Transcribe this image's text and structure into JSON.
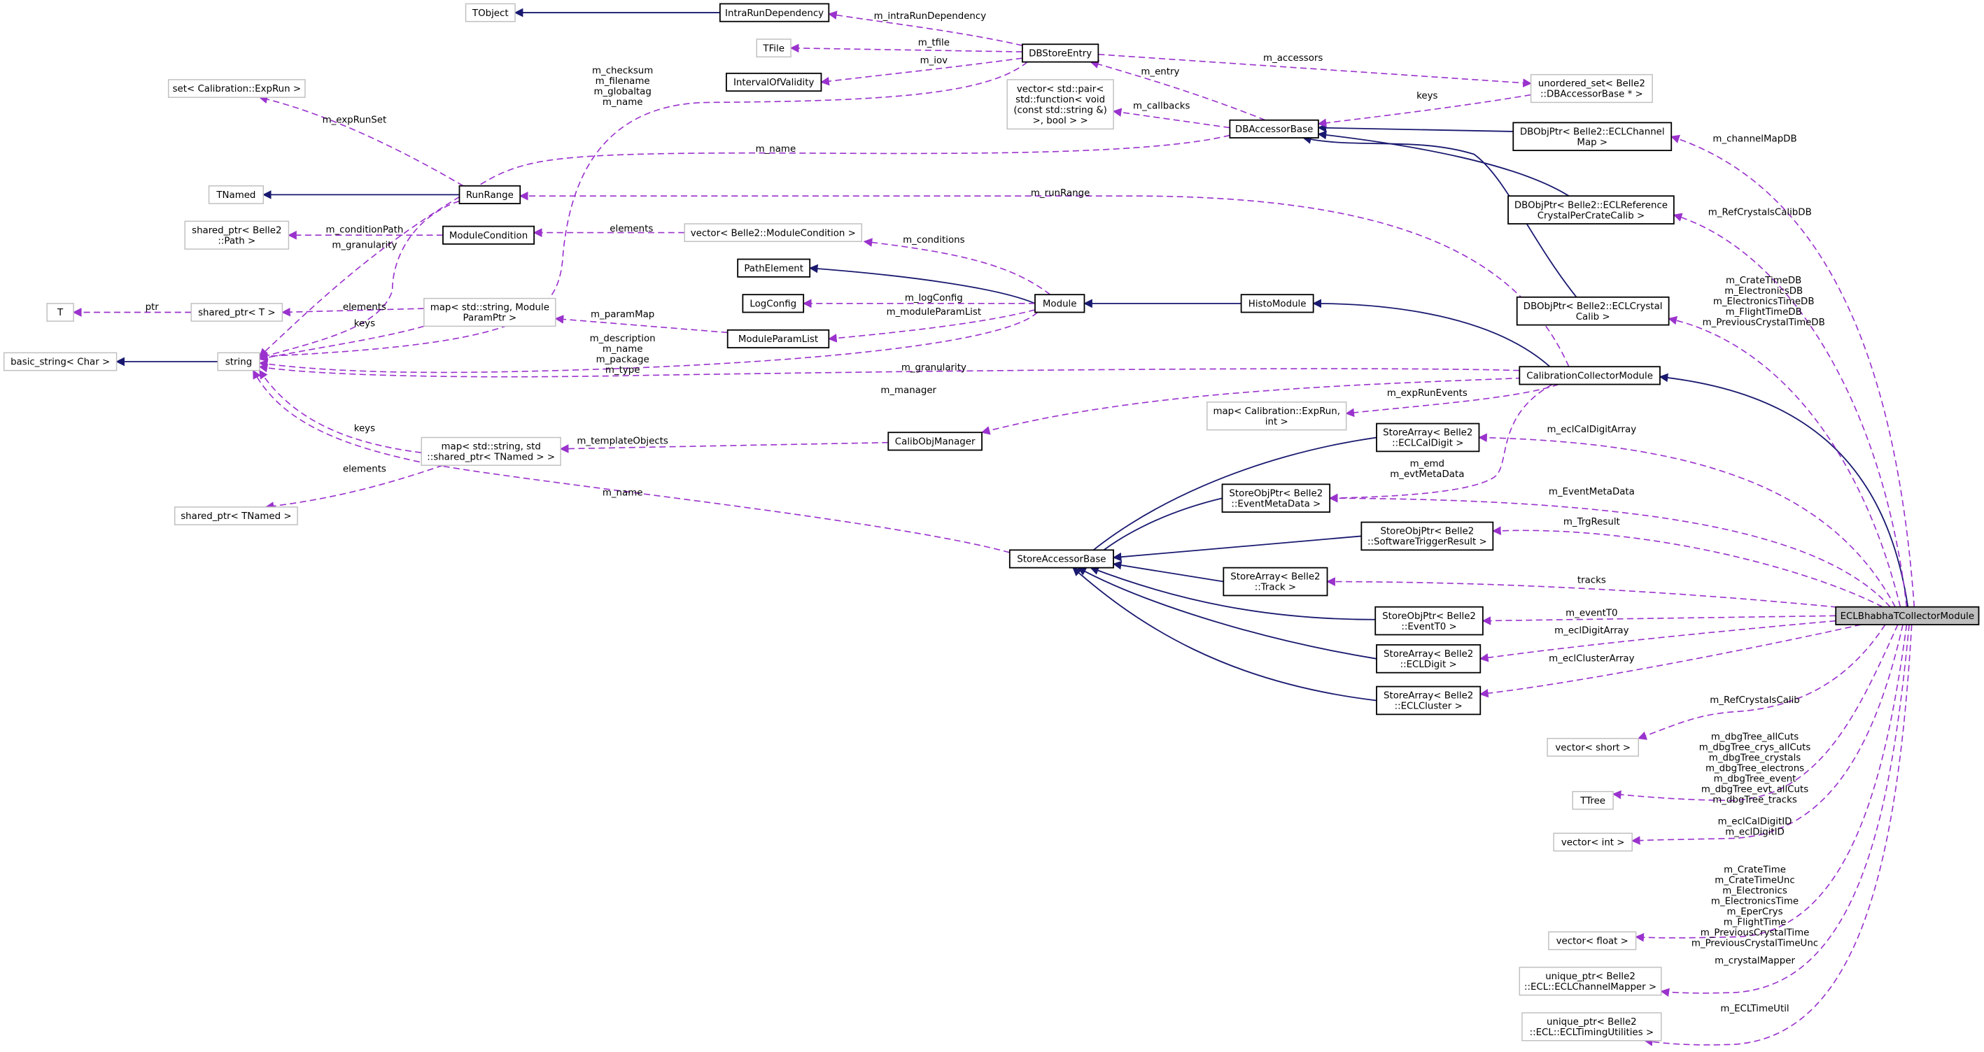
{
  "colors": {
    "inheritance": "#191970",
    "usage": "#9a32cd",
    "focus_fill": "#bfbfbf",
    "undocumented_border": "#bfbfbf"
  },
  "nodes": [
    {
      "id": "TObject",
      "lines": [
        "TObject"
      ],
      "style": "undocumented"
    },
    {
      "id": "IntraRunDependency",
      "lines": [
        "IntraRunDependency"
      ],
      "style": "documented"
    },
    {
      "id": "TFile",
      "lines": [
        "TFile"
      ],
      "style": "undocumented"
    },
    {
      "id": "IntervalOfValidity",
      "lines": [
        "IntervalOfValidity"
      ],
      "style": "documented"
    },
    {
      "id": "DBStoreEntry",
      "lines": [
        "DBStoreEntry"
      ],
      "style": "documented"
    },
    {
      "id": "setExpRun",
      "lines": [
        "set< Calibration::ExpRun >"
      ],
      "style": "undocumented"
    },
    {
      "id": "vectorPair",
      "lines": [
        "vector< std::pair<",
        "std::function< void",
        "(const std::string &)",
        ">, bool > >"
      ],
      "style": "undocumented"
    },
    {
      "id": "unorderedSet",
      "lines": [
        "unordered_set< Belle2",
        "::DBAccessorBase * >"
      ],
      "style": "undocumented"
    },
    {
      "id": "DBAccessorBase",
      "lines": [
        "DBAccessorBase"
      ],
      "style": "documented"
    },
    {
      "id": "DBObjPtrChannelMap",
      "lines": [
        "DBObjPtr< Belle2::ECLChannel",
        "Map >"
      ],
      "style": "documented"
    },
    {
      "id": "TNamed",
      "lines": [
        "TNamed"
      ],
      "style": "undocumented"
    },
    {
      "id": "RunRange",
      "lines": [
        "RunRange"
      ],
      "style": "documented"
    },
    {
      "id": "DBObjPtrRefCrystal",
      "lines": [
        "DBObjPtr< Belle2::ECLReference",
        "CrystalPerCrateCalib >"
      ],
      "style": "documented"
    },
    {
      "id": "sharedPtrPath",
      "lines": [
        "shared_ptr< Belle2",
        "::Path >"
      ],
      "style": "undocumented"
    },
    {
      "id": "ModuleCondition",
      "lines": [
        "ModuleCondition"
      ],
      "style": "documented"
    },
    {
      "id": "vectorModuleCondition",
      "lines": [
        "vector< Belle2::ModuleCondition >"
      ],
      "style": "undocumented"
    },
    {
      "id": "PathElement",
      "lines": [
        "PathElement"
      ],
      "style": "documented"
    },
    {
      "id": "LogConfig",
      "lines": [
        "LogConfig"
      ],
      "style": "documented"
    },
    {
      "id": "Module",
      "lines": [
        "Module"
      ],
      "style": "documented"
    },
    {
      "id": "HistoModule",
      "lines": [
        "HistoModule"
      ],
      "style": "documented"
    },
    {
      "id": "DBObjPtrCrystalCalib",
      "lines": [
        "DBObjPtr< Belle2::ECLCrystal",
        "Calib >"
      ],
      "style": "documented"
    },
    {
      "id": "T",
      "lines": [
        "T"
      ],
      "style": "undocumented"
    },
    {
      "id": "sharedPtrT",
      "lines": [
        "shared_ptr< T >"
      ],
      "style": "undocumented"
    },
    {
      "id": "mapModuleParamPtr",
      "lines": [
        "map< std::string, Module",
        "ParamPtr >"
      ],
      "style": "undocumented"
    },
    {
      "id": "ModuleParamList",
      "lines": [
        "ModuleParamList"
      ],
      "style": "documented"
    },
    {
      "id": "basicString",
      "lines": [
        "basic_string< Char >"
      ],
      "style": "undocumented"
    },
    {
      "id": "string",
      "lines": [
        "string"
      ],
      "style": "undocumented"
    },
    {
      "id": "CalibrationCollectorModule",
      "lines": [
        "CalibrationCollectorModule"
      ],
      "style": "documented"
    },
    {
      "id": "mapExpRunInt",
      "lines": [
        "map< Calibration::ExpRun,",
        "int >"
      ],
      "style": "undocumented"
    },
    {
      "id": "StoreArrayECLCalDigit",
      "lines": [
        "StoreArray< Belle2",
        "::ECLCalDigit >"
      ],
      "style": "documented"
    },
    {
      "id": "CalibObjManager",
      "lines": [
        "CalibObjManager"
      ],
      "style": "documented"
    },
    {
      "id": "mapTNamed",
      "lines": [
        "map< std::string, std",
        "::shared_ptr< TNamed > >"
      ],
      "style": "undocumented"
    },
    {
      "id": "StoreObjPtrEventMetaData",
      "lines": [
        "StoreObjPtr< Belle2",
        "::EventMetaData >"
      ],
      "style": "documented"
    },
    {
      "id": "sharedPtrTNamed",
      "lines": [
        "shared_ptr< TNamed >"
      ],
      "style": "undocumented"
    },
    {
      "id": "StoreObjPtrSWTrigger",
      "lines": [
        "StoreObjPtr< Belle2",
        "::SoftwareTriggerResult >"
      ],
      "style": "documented"
    },
    {
      "id": "StoreAccessorBase",
      "lines": [
        "StoreAccessorBase"
      ],
      "style": "documented"
    },
    {
      "id": "StoreArrayTrack",
      "lines": [
        "StoreArray< Belle2",
        "::Track >"
      ],
      "style": "documented"
    },
    {
      "id": "ECLBhabhaTCollectorModule",
      "lines": [
        "ECLBhabhaTCollectorModule"
      ],
      "style": "focus"
    },
    {
      "id": "StoreObjPtrEventT0",
      "lines": [
        "StoreObjPtr< Belle2",
        "::EventT0 >"
      ],
      "style": "documented"
    },
    {
      "id": "StoreArrayECLDigit",
      "lines": [
        "StoreArray< Belle2",
        "::ECLDigit >"
      ],
      "style": "documented"
    },
    {
      "id": "StoreArrayECLCluster",
      "lines": [
        "StoreArray< Belle2",
        "::ECLCluster >"
      ],
      "style": "documented"
    },
    {
      "id": "vectorShort",
      "lines": [
        "vector< short >"
      ],
      "style": "undocumented"
    },
    {
      "id": "TTree",
      "lines": [
        "TTree"
      ],
      "style": "undocumented"
    },
    {
      "id": "vectorInt",
      "lines": [
        "vector< int >"
      ],
      "style": "undocumented"
    },
    {
      "id": "vectorFloat",
      "lines": [
        "vector< float >"
      ],
      "style": "undocumented"
    },
    {
      "id": "uniqueChannelMapper",
      "lines": [
        "unique_ptr< Belle2",
        "::ECL::ECLChannelMapper >"
      ],
      "style": "undocumented"
    },
    {
      "id": "uniqueTimingUtils",
      "lines": [
        "unique_ptr< Belle2",
        "::ECL::ECLTimingUtilities >"
      ],
      "style": "undocumented"
    }
  ],
  "edges": [
    {
      "from": "IntraRunDependency",
      "to": "TObject",
      "kind": "inherit",
      "labels": []
    },
    {
      "from": "RunRange",
      "to": "TNamed",
      "kind": "inherit",
      "labels": []
    },
    {
      "from": "string",
      "to": "basicString",
      "kind": "inherit",
      "labels": []
    },
    {
      "from": "Module",
      "to": "PathElement",
      "kind": "inherit",
      "labels": []
    },
    {
      "from": "HistoModule",
      "to": "Module",
      "kind": "inherit",
      "labels": []
    },
    {
      "from": "CalibrationCollectorModule",
      "to": "HistoModule",
      "kind": "inherit",
      "labels": []
    },
    {
      "from": "ECLBhabhaTCollectorModule",
      "to": "CalibrationCollectorModule",
      "kind": "inherit",
      "labels": []
    },
    {
      "from": "DBObjPtrChannelMap",
      "to": "DBAccessorBase",
      "kind": "inherit",
      "labels": []
    },
    {
      "from": "DBObjPtrRefCrystal",
      "to": "DBAccessorBase",
      "kind": "inherit",
      "labels": []
    },
    {
      "from": "DBObjPtrCrystalCalib",
      "to": "DBAccessorBase",
      "kind": "inherit",
      "labels": []
    },
    {
      "from": "StoreArrayECLCalDigit",
      "to": "StoreAccessorBase",
      "kind": "inherit",
      "labels": []
    },
    {
      "from": "StoreObjPtrEventMetaData",
      "to": "StoreAccessorBase",
      "kind": "inherit",
      "labels": []
    },
    {
      "from": "StoreObjPtrSWTrigger",
      "to": "StoreAccessorBase",
      "kind": "inherit",
      "labels": []
    },
    {
      "from": "StoreArrayTrack",
      "to": "StoreAccessorBase",
      "kind": "inherit",
      "labels": []
    },
    {
      "from": "StoreObjPtrEventT0",
      "to": "StoreAccessorBase",
      "kind": "inherit",
      "labels": []
    },
    {
      "from": "StoreArrayECLDigit",
      "to": "StoreAccessorBase",
      "kind": "inherit",
      "labels": []
    },
    {
      "from": "StoreArrayECLCluster",
      "to": "StoreAccessorBase",
      "kind": "inherit",
      "labels": []
    },
    {
      "from": "DBStoreEntry",
      "to": "IntraRunDependency",
      "kind": "usage",
      "labels": [
        "m_intraRunDependency"
      ]
    },
    {
      "from": "DBStoreEntry",
      "to": "TFile",
      "kind": "usage",
      "labels": [
        "m_tfile"
      ]
    },
    {
      "from": "DBStoreEntry",
      "to": "IntervalOfValidity",
      "kind": "usage",
      "labels": [
        "m_iov"
      ]
    },
    {
      "from": "DBStoreEntry",
      "to": "string",
      "kind": "usage",
      "labels": [
        "m_checksum",
        "m_filename",
        "m_globaltag",
        "m_name"
      ]
    },
    {
      "from": "DBStoreEntry",
      "to": "unorderedSet",
      "kind": "usage",
      "labels": [
        "m_accessors"
      ]
    },
    {
      "from": "DBAccessorBase",
      "to": "DBStoreEntry",
      "kind": "usage",
      "labels": [
        "m_entry"
      ]
    },
    {
      "from": "DBAccessorBase",
      "to": "vectorPair",
      "kind": "usage",
      "labels": [
        "m_callbacks"
      ]
    },
    {
      "from": "unorderedSet",
      "to": "DBAccessorBase",
      "kind": "usage",
      "labels": [
        "keys"
      ]
    },
    {
      "from": "DBAccessorBase",
      "to": "string",
      "kind": "usage",
      "labels": [
        "m_name"
      ]
    },
    {
      "from": "RunRange",
      "to": "setExpRun",
      "kind": "usage",
      "labels": [
        "m_expRunSet"
      ]
    },
    {
      "from": "CalibrationCollectorModule",
      "to": "RunRange",
      "kind": "usage",
      "labels": [
        "m_runRange"
      ]
    },
    {
      "from": "RunRange",
      "to": "string",
      "kind": "usage",
      "labels": [
        "m_granularity"
      ]
    },
    {
      "from": "ModuleCondition",
      "to": "sharedPtrPath",
      "kind": "usage",
      "labels": [
        "m_conditionPath"
      ]
    },
    {
      "from": "vectorModuleCondition",
      "to": "ModuleCondition",
      "kind": "usage",
      "labels": [
        "elements"
      ]
    },
    {
      "from": "Module",
      "to": "vectorModuleCondition",
      "kind": "usage",
      "labels": [
        "m_conditions"
      ]
    },
    {
      "from": "Module",
      "to": "LogConfig",
      "kind": "usage",
      "labels": [
        "m_logConfig"
      ]
    },
    {
      "from": "Module",
      "to": "ModuleParamList",
      "kind": "usage",
      "labels": [
        "m_moduleParamList"
      ]
    },
    {
      "from": "Module",
      "to": "string",
      "kind": "usage",
      "labels": [
        "m_description",
        "m_name",
        "m_package",
        "m_type"
      ]
    },
    {
      "from": "ModuleParamList",
      "to": "mapModuleParamPtr",
      "kind": "usage",
      "labels": [
        "m_paramMap"
      ]
    },
    {
      "from": "mapModuleParamPtr",
      "to": "sharedPtrT",
      "kind": "usage",
      "labels": [
        "elements"
      ]
    },
    {
      "from": "mapModuleParamPtr",
      "to": "string",
      "kind": "usage",
      "labels": [
        "keys"
      ]
    },
    {
      "from": "sharedPtrT",
      "to": "T",
      "kind": "usage",
      "labels": [
        "ptr"
      ]
    },
    {
      "from": "CalibrationCollectorModule",
      "to": "string",
      "kind": "usage",
      "labels": [
        "m_granularity"
      ]
    },
    {
      "from": "CalibrationCollectorModule",
      "to": "CalibObjManager",
      "kind": "usage",
      "labels": [
        "m_manager"
      ]
    },
    {
      "from": "CalibrationCollectorModule",
      "to": "mapExpRunInt",
      "kind": "usage",
      "labels": [
        "m_expRunEvents"
      ]
    },
    {
      "from": "CalibrationCollectorModule",
      "to": "StoreObjPtrEventMetaData",
      "kind": "usage",
      "labels": [
        "m_emd",
        "m_evtMetaData"
      ]
    },
    {
      "from": "CalibObjManager",
      "to": "mapTNamed",
      "kind": "usage",
      "labels": [
        "m_templateObjects"
      ]
    },
    {
      "from": "mapTNamed",
      "to": "string",
      "kind": "usage",
      "labels": [
        "keys"
      ]
    },
    {
      "from": "mapTNamed",
      "to": "sharedPtrTNamed",
      "kind": "usage",
      "labels": [
        "elements"
      ]
    },
    {
      "from": "StoreAccessorBase",
      "to": "string",
      "kind": "usage",
      "labels": [
        "m_name"
      ]
    },
    {
      "from": "ECLBhabhaTCollectorModule",
      "to": "DBObjPtrChannelMap",
      "kind": "usage",
      "labels": [
        "m_channelMapDB"
      ]
    },
    {
      "from": "ECLBhabhaTCollectorModule",
      "to": "DBObjPtrRefCrystal",
      "kind": "usage",
      "labels": [
        "m_RefCrystalsCalibDB"
      ]
    },
    {
      "from": "ECLBhabhaTCollectorModule",
      "to": "DBObjPtrCrystalCalib",
      "kind": "usage",
      "labels": [
        "m_CrateTimeDB",
        "m_ElectronicsDB",
        "m_ElectronicsTimeDB",
        "m_FlightTimeDB",
        "m_PreviousCrystalTimeDB"
      ]
    },
    {
      "from": "ECLBhabhaTCollectorModule",
      "to": "StoreArrayECLCalDigit",
      "kind": "usage",
      "labels": [
        "m_eclCalDigitArray"
      ]
    },
    {
      "from": "ECLBhabhaTCollectorModule",
      "to": "StoreObjPtrEventMetaData",
      "kind": "usage",
      "labels": [
        "m_EventMetaData"
      ]
    },
    {
      "from": "ECLBhabhaTCollectorModule",
      "to": "StoreObjPtrSWTrigger",
      "kind": "usage",
      "labels": [
        "m_TrgResult"
      ]
    },
    {
      "from": "ECLBhabhaTCollectorModule",
      "to": "StoreArrayTrack",
      "kind": "usage",
      "labels": [
        "tracks"
      ]
    },
    {
      "from": "ECLBhabhaTCollectorModule",
      "to": "StoreObjPtrEventT0",
      "kind": "usage",
      "labels": [
        "m_eventT0"
      ]
    },
    {
      "from": "ECLBhabhaTCollectorModule",
      "to": "StoreArrayECLDigit",
      "kind": "usage",
      "labels": [
        "m_eclDigitArray"
      ]
    },
    {
      "from": "ECLBhabhaTCollectorModule",
      "to": "StoreArrayECLCluster",
      "kind": "usage",
      "labels": [
        "m_eclClusterArray"
      ]
    },
    {
      "from": "ECLBhabhaTCollectorModule",
      "to": "vectorShort",
      "kind": "usage",
      "labels": [
        "m_RefCrystalsCalib"
      ]
    },
    {
      "from": "ECLBhabhaTCollectorModule",
      "to": "TTree",
      "kind": "usage",
      "labels": [
        "m_dbgTree_allCuts",
        "m_dbgTree_crys_allCuts",
        "m_dbgTree_crystals",
        "m_dbgTree_electrons",
        "m_dbgTree_event",
        "m_dbgTree_evt_allCuts",
        "m_dbgTree_tracks"
      ]
    },
    {
      "from": "ECLBhabhaTCollectorModule",
      "to": "vectorInt",
      "kind": "usage",
      "labels": [
        "m_eclCalDigitID",
        "m_eclDigitID"
      ]
    },
    {
      "from": "ECLBhabhaTCollectorModule",
      "to": "vectorFloat",
      "kind": "usage",
      "labels": [
        "m_CrateTime",
        "m_CrateTimeUnc",
        "m_Electronics",
        "m_ElectronicsTime",
        "m_EperCrys",
        "m_FlightTime",
        "m_PreviousCrystalTime",
        "m_PreviousCrystalTimeUnc"
      ]
    },
    {
      "from": "ECLBhabhaTCollectorModule",
      "to": "uniqueChannelMapper",
      "kind": "usage",
      "labels": [
        "m_crystalMapper"
      ]
    },
    {
      "from": "ECLBhabhaTCollectorModule",
      "to": "uniqueTimingUtils",
      "kind": "usage",
      "labels": [
        "m_ECLTimeUtil"
      ]
    }
  ]
}
